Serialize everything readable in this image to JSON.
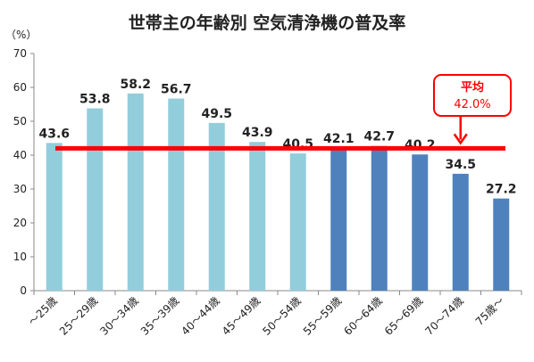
{
  "chart_data": {
    "type": "bar",
    "title": "世帯主の年齢別 空気清浄機の普及率",
    "unit_label": "（%）",
    "ylim": [
      0,
      70
    ],
    "yticks": [
      0,
      10,
      20,
      30,
      40,
      50,
      60,
      70
    ],
    "grid": false,
    "categories": [
      "～25歳",
      "25～29歳",
      "30～34歳",
      "35～39歳",
      "40～44歳",
      "45～49歳",
      "50～54歳",
      "55～59歳",
      "60～64歳",
      "65～69歳",
      "70～74歳",
      "75歳～"
    ],
    "values": [
      43.6,
      53.8,
      58.2,
      56.7,
      49.5,
      43.9,
      40.5,
      42.1,
      42.7,
      40.2,
      34.5,
      27.2
    ],
    "data_labels": [
      "43.6",
      "53.8",
      "58.2",
      "56.7",
      "49.5",
      "43.9",
      "40.5",
      "42.1",
      "42.7",
      "40.2",
      "34.5",
      "27.2"
    ],
    "bar_colors": [
      "#92cddc",
      "#92cddc",
      "#92cddc",
      "#92cddc",
      "#92cddc",
      "#92cddc",
      "#92cddc",
      "#4f81bd",
      "#4f81bd",
      "#4f81bd",
      "#4f81bd",
      "#4f81bd"
    ],
    "average": {
      "value": 42.0,
      "title": "平均",
      "label": "42.0%",
      "color": "#ff0000"
    }
  }
}
